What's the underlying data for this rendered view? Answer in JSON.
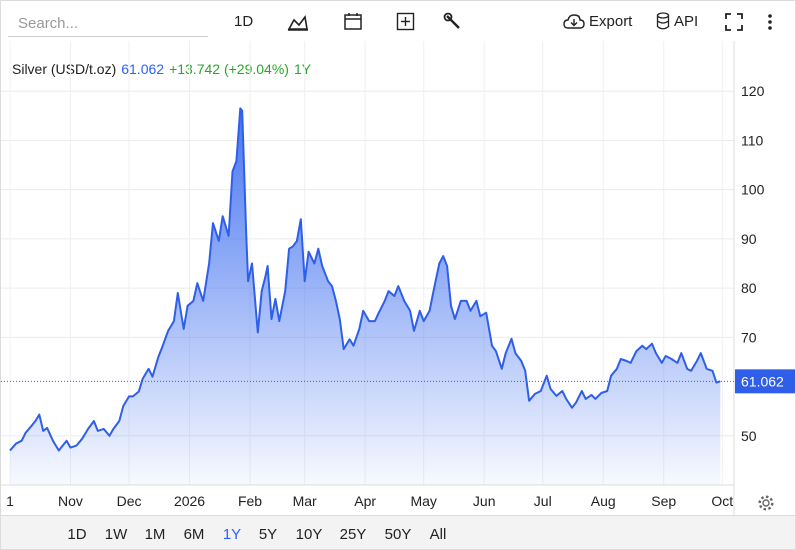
{
  "toolbar": {
    "search_placeholder": "Search...",
    "interval": "1D",
    "export": "Export",
    "api": "API"
  },
  "ranges": {
    "buttons": [
      "1D",
      "1W",
      "1M",
      "6M",
      "1Y",
      "5Y",
      "10Y",
      "25Y",
      "50Y",
      "All"
    ],
    "active": 4
  },
  "chart_data": {
    "type": "area",
    "title": "Silver (USD/t.oz)",
    "change": "+13.742 (+29.04%)",
    "period": "1Y",
    "price_marker": 61.062,
    "xlim": [
      0,
      371
    ],
    "ylim": [
      40,
      130
    ],
    "xticks": [
      {
        "value": 0,
        "label": "1"
      },
      {
        "value": 31,
        "label": "Nov"
      },
      {
        "value": 61,
        "label": "Dec"
      },
      {
        "value": 92,
        "label": "2026"
      },
      {
        "value": 123,
        "label": "Feb"
      },
      {
        "value": 151,
        "label": "Mar"
      },
      {
        "value": 182,
        "label": "Apr"
      },
      {
        "value": 212,
        "label": "May"
      },
      {
        "value": 243,
        "label": "Jun"
      },
      {
        "value": 273,
        "label": "Jul"
      },
      {
        "value": 304,
        "label": "Aug"
      },
      {
        "value": 335,
        "label": "Sep"
      },
      {
        "value": 365,
        "label": "Oct"
      }
    ],
    "yticks": [
      50,
      70,
      80,
      90,
      100,
      110,
      120
    ],
    "grid": true,
    "x": [
      0,
      3,
      6,
      8,
      11,
      13,
      15,
      17,
      19,
      22,
      25,
      29,
      31,
      34,
      37,
      40,
      43,
      45,
      48,
      51,
      53,
      56,
      58,
      61,
      63,
      66,
      68,
      71,
      73,
      76,
      78,
      81,
      84,
      86,
      89,
      91,
      94,
      96,
      99,
      102,
      104,
      107,
      109,
      112,
      114,
      116,
      118,
      119,
      121,
      122,
      124,
      127,
      129,
      131,
      132,
      134,
      136,
      138,
      141,
      143,
      145,
      147,
      149,
      151,
      153,
      156,
      158,
      160,
      163,
      165,
      167,
      169,
      171,
      174,
      176,
      179,
      181,
      184,
      187,
      189,
      192,
      194,
      197,
      199,
      202,
      205,
      207,
      210,
      212,
      215,
      217,
      220,
      222,
      224,
      226,
      228,
      231,
      234,
      236,
      239,
      241,
      244,
      247,
      249,
      252,
      254,
      257,
      259,
      262,
      264,
      266,
      269,
      272,
      275,
      277,
      280,
      283,
      285,
      288,
      290,
      293,
      295,
      298,
      300,
      303,
      306,
      308,
      311,
      313,
      316,
      318,
      321,
      324,
      326,
      329,
      331,
      334,
      336,
      339,
      342,
      344,
      347,
      349,
      352,
      354,
      357,
      360,
      362,
      364
    ],
    "series": [
      {
        "name": "Silver",
        "color": "#2f5fe8",
        "values": [
          47,
          48.4,
          49,
          50.6,
          52,
          53,
          54.3,
          51,
          51.6,
          49,
          47,
          49,
          47.6,
          48,
          49.4,
          51.4,
          53,
          51,
          51.4,
          50,
          51.4,
          53,
          56,
          58,
          58,
          59,
          61.6,
          63.6,
          62,
          66,
          68,
          71.3,
          73.3,
          79,
          71.7,
          76.4,
          77.4,
          81,
          77.4,
          85,
          93.2,
          89.6,
          94.6,
          90.6,
          103.7,
          105.8,
          116.5,
          116,
          91.6,
          81.4,
          85,
          71,
          79.4,
          82.5,
          84.5,
          73.7,
          77.8,
          73.3,
          79.4,
          88,
          88.5,
          89.6,
          94,
          81.4,
          87.4,
          85,
          88,
          84.5,
          81.4,
          80.4,
          77.4,
          73.7,
          67.6,
          69.6,
          68.3,
          71.7,
          75.4,
          73.3,
          73.3,
          75,
          77.4,
          79.4,
          78.4,
          80.4,
          77.4,
          75.4,
          71.3,
          75.4,
          73.3,
          75.4,
          79.4,
          85,
          86.5,
          84.5,
          76.4,
          73.7,
          77.4,
          77.4,
          75.4,
          77.4,
          74.3,
          75,
          68.3,
          67.2,
          63.6,
          66.8,
          69.7,
          66.8,
          65.2,
          63.2,
          57.1,
          58.5,
          59.1,
          62.2,
          59.5,
          58.1,
          59.1,
          57.5,
          55.7,
          56.7,
          59.1,
          57.5,
          58.3,
          57.5,
          58.7,
          59.1,
          62.2,
          63.6,
          65.6,
          65.2,
          64.8,
          67.2,
          68.3,
          67.6,
          68.7,
          66.8,
          64.8,
          66.2,
          65.6,
          64.8,
          66.8,
          63.6,
          63.2,
          65.2,
          66.8,
          63.6,
          63.2,
          60.8,
          61.062
        ]
      }
    ]
  }
}
